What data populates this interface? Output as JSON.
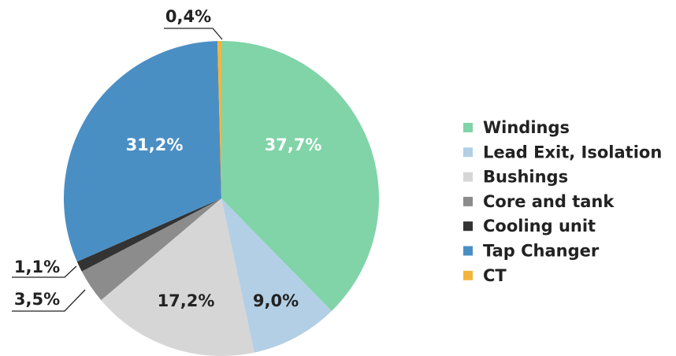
{
  "chart_data": {
    "type": "pie",
    "categories": [
      "Windings",
      "Lead Exit, Isolation",
      "Bushings",
      "Core and tank",
      "Cooling unit",
      "Tap Changer",
      "CT"
    ],
    "values": [
      37.7,
      9.0,
      17.2,
      3.5,
      1.1,
      31.2,
      0.4
    ],
    "value_labels": [
      "37,7%",
      "9,0%",
      "17,2%",
      "3,5%",
      "1,1%",
      "31,2%",
      "0,4%"
    ],
    "colors": [
      "#80d4a8",
      "#b3cfe5",
      "#d6d6d6",
      "#8c8c8c",
      "#333333",
      "#4a8fc4",
      "#f2b53c"
    ],
    "legend": "right"
  }
}
